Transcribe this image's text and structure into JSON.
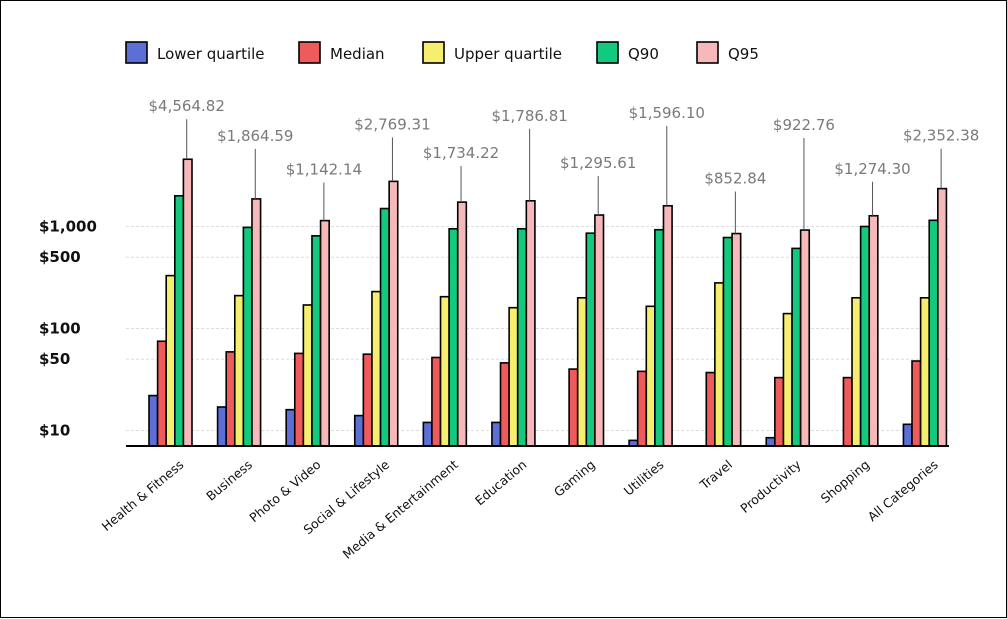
{
  "chart_data": {
    "type": "bar",
    "y_scale": "log",
    "ylim": [
      5,
      15000
    ],
    "grid": true,
    "legend_position": "top",
    "yticks": [
      {
        "value": 10,
        "label": "$10"
      },
      {
        "value": 50,
        "label": "$50"
      },
      {
        "value": 100,
        "label": "$100"
      },
      {
        "value": 500,
        "label": "$500"
      },
      {
        "value": 1000,
        "label": "$1,000"
      }
    ],
    "categories": [
      "Health & Fitness",
      "Business",
      "Photo & Video",
      "Social & Lifestyle",
      "Media & Entertainment",
      "Education",
      "Gaming",
      "Utilities",
      "Travel",
      "Productivity",
      "Shopping",
      "All Categories"
    ],
    "series": [
      {
        "name": "Lower quartile",
        "color": "#5b6fd6",
        "values": [
          22,
          17,
          16,
          14,
          12,
          12,
          null,
          8,
          7,
          8.5,
          null,
          11.5
        ]
      },
      {
        "name": "Median",
        "color": "#ef5a5a",
        "values": [
          75,
          59,
          57,
          56,
          52,
          46,
          40,
          38,
          37,
          33,
          33,
          48
        ]
      },
      {
        "name": "Upper quartile",
        "color": "#f6ee6e",
        "values": [
          330,
          210,
          170,
          230,
          205,
          160,
          200,
          165,
          280,
          140,
          200,
          200
        ]
      },
      {
        "name": "Q90",
        "color": "#12c97d",
        "values": [
          2000,
          980,
          810,
          1500,
          950,
          950,
          860,
          930,
          780,
          610,
          1000,
          1150
        ]
      },
      {
        "name": "Q95",
        "color": "#f6b8b8",
        "values": [
          4564.82,
          1864.59,
          1142.14,
          2769.31,
          1734.22,
          1786.81,
          1295.61,
          1596.1,
          852.84,
          922.76,
          1274.3,
          2352.38
        ]
      }
    ],
    "data_labels": [
      "$4,564.82",
      "$1,864.59",
      "$1,142.14",
      "$2,769.31",
      "$1,734.22",
      "$1,786.81",
      "$1,295.61",
      "$1,596.10",
      "$852.84",
      "$922.76",
      "$1,274.30",
      "$2,352.38"
    ]
  }
}
